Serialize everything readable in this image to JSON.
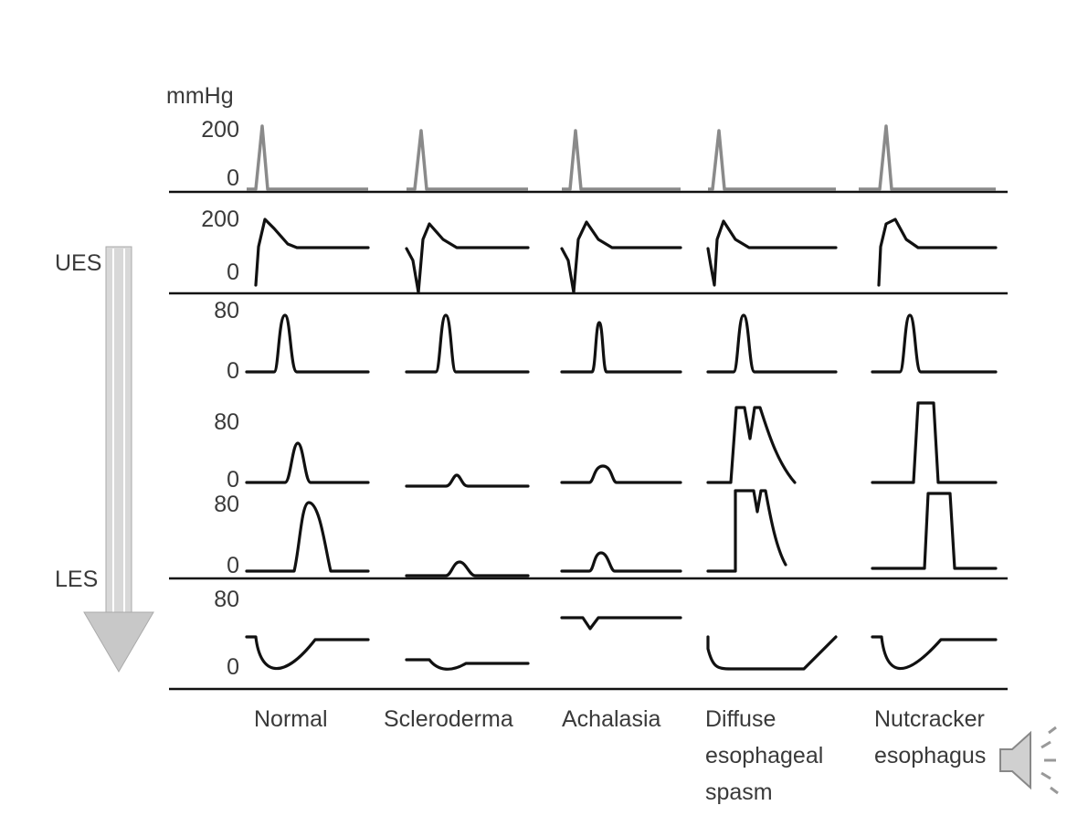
{
  "unit": "mmHg",
  "rows": [
    {
      "ticks": [
        "200",
        "0"
      ]
    },
    {
      "ticks": [
        "200",
        "0"
      ]
    },
    {
      "ticks": [
        "80",
        "0"
      ]
    },
    {
      "ticks": [
        "80",
        "0"
      ]
    },
    {
      "ticks": [
        "80",
        "0"
      ]
    },
    {
      "ticks": [
        "80",
        "0"
      ]
    }
  ],
  "side_labels": [
    "UES",
    "LES"
  ],
  "columns": [
    {
      "lines": [
        "Normal"
      ]
    },
    {
      "lines": [
        "Scleroderma"
      ]
    },
    {
      "lines": [
        "Achalasia"
      ]
    },
    {
      "lines": [
        "Diffuse",
        "esophageal",
        "spasm"
      ]
    },
    {
      "lines": [
        "Nutcracker",
        "esophagus"
      ]
    }
  ]
}
